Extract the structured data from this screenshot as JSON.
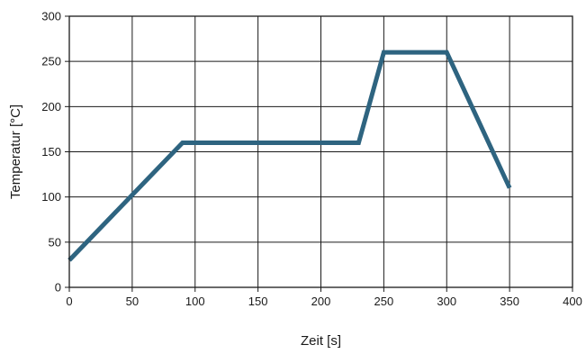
{
  "chart_data": {
    "type": "line",
    "title": "",
    "xlabel": "Zeit [s]",
    "ylabel": "Temperatur [°C]",
    "xlim": [
      0,
      400
    ],
    "ylim": [
      0,
      300
    ],
    "xticks": [
      0,
      50,
      100,
      150,
      200,
      250,
      300,
      350,
      400
    ],
    "yticks": [
      0,
      50,
      100,
      150,
      200,
      250,
      300
    ],
    "grid": true,
    "series": [
      {
        "color": "#2e6480",
        "x": [
          0,
          90,
          230,
          250,
          300,
          350
        ],
        "y": [
          30,
          160,
          160,
          260,
          260,
          110
        ]
      }
    ]
  }
}
